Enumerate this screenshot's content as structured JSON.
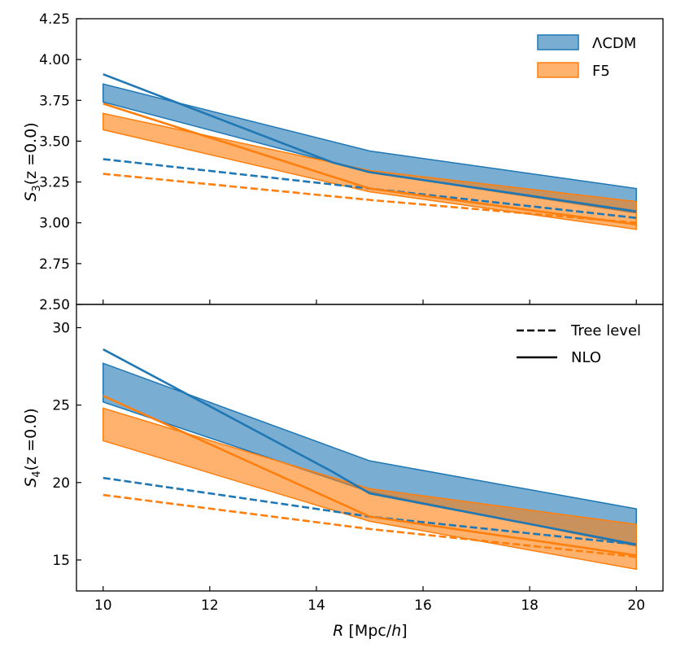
{
  "colors": {
    "lcdm": "#1f77b4",
    "f5": "#ff7f0e",
    "lcdm_band": "#1f77b4",
    "f5_band": "#ff7f0e"
  },
  "chart_data": [
    {
      "type": "line",
      "panel": "top",
      "ylabel": "S_3(z =0.0)",
      "ylabel_parts": {
        "sym": "S",
        "sub": "3",
        "rest": "(z =0.0)"
      },
      "ylim": [
        2.5,
        4.25
      ],
      "yticks": [
        2.5,
        2.75,
        3.0,
        3.25,
        3.5,
        3.75,
        4.0,
        4.25
      ],
      "ytick_labels": [
        "2.50",
        "2.75",
        "3.00",
        "3.25",
        "3.50",
        "3.75",
        "4.00",
        "4.25"
      ],
      "legend": {
        "placement": "top-right",
        "entries": [
          "ΛCDM",
          "F5"
        ]
      },
      "bands": [
        {
          "name": "ΛCDM",
          "x": [
            10,
            15,
            20
          ],
          "lower": [
            3.74,
            3.31,
            3.06
          ],
          "upper": [
            3.85,
            3.44,
            3.21
          ]
        },
        {
          "name": "F5",
          "x": [
            10,
            15,
            20
          ],
          "lower": [
            3.57,
            3.19,
            2.96
          ],
          "upper": [
            3.67,
            3.32,
            3.13
          ]
        }
      ],
      "series": [
        {
          "name": "ΛCDM tree level",
          "style": "dashed",
          "color": "lcdm",
          "x": [
            10,
            15,
            20
          ],
          "y": [
            3.39,
            3.21,
            3.03
          ]
        },
        {
          "name": "F5 tree level",
          "style": "dashed",
          "color": "f5",
          "x": [
            10,
            15,
            20
          ],
          "y": [
            3.3,
            3.14,
            3.0
          ]
        },
        {
          "name": "ΛCDM NLO",
          "style": "solid",
          "color": "lcdm",
          "x": [
            10,
            14.3,
            15,
            20
          ],
          "y": [
            3.91,
            3.37,
            3.31,
            3.07
          ]
        },
        {
          "name": "F5 NLO",
          "style": "solid",
          "color": "f5",
          "x": [
            10,
            15,
            20
          ],
          "y": [
            3.73,
            3.21,
            2.99
          ]
        }
      ]
    },
    {
      "type": "line",
      "panel": "bottom",
      "xlabel": "R [Mpc/h]",
      "xlabel_parts": {
        "sym": "R",
        "pre": " [Mpc/",
        "h": "h",
        "post": "]"
      },
      "ylabel": "S_4(z =0.0)",
      "ylabel_parts": {
        "sym": "S",
        "sub": "4",
        "rest": "(z =0.0)"
      },
      "xlim": [
        9.5,
        20.5
      ],
      "ylim": [
        13.0,
        31.5
      ],
      "xticks": [
        10,
        12,
        14,
        16,
        18,
        20
      ],
      "xtick_labels": [
        "10",
        "12",
        "14",
        "16",
        "18",
        "20"
      ],
      "yticks": [
        15,
        20,
        25,
        30
      ],
      "ytick_labels": [
        "15",
        "20",
        "25",
        "30"
      ],
      "legend": {
        "placement": "top-right",
        "entries": [
          "Tree level",
          "NLO"
        ]
      },
      "bands": [
        {
          "name": "ΛCDM",
          "x": [
            10,
            15,
            20
          ],
          "lower": [
            25.2,
            19.4,
            15.9
          ],
          "upper": [
            27.7,
            21.4,
            18.3
          ]
        },
        {
          "name": "F5",
          "x": [
            10,
            15,
            20
          ],
          "lower": [
            22.7,
            17.5,
            14.4
          ],
          "upper": [
            24.8,
            19.6,
            17.3
          ]
        }
      ],
      "series": [
        {
          "name": "ΛCDM tree level",
          "style": "dashed",
          "color": "lcdm",
          "x": [
            10,
            15,
            20
          ],
          "y": [
            20.3,
            17.8,
            16.0
          ]
        },
        {
          "name": "F5 tree level",
          "style": "dashed",
          "color": "f5",
          "x": [
            10,
            15,
            20
          ],
          "y": [
            19.2,
            17.0,
            15.2
          ]
        },
        {
          "name": "ΛCDM NLO",
          "style": "solid",
          "color": "lcdm",
          "x": [
            10,
            14.3,
            15,
            20
          ],
          "y": [
            28.6,
            20.7,
            19.3,
            16.0
          ]
        },
        {
          "name": "F5 NLO",
          "style": "solid",
          "color": "f5",
          "x": [
            10,
            15,
            20
          ],
          "y": [
            25.6,
            17.8,
            15.3
          ]
        }
      ]
    }
  ]
}
